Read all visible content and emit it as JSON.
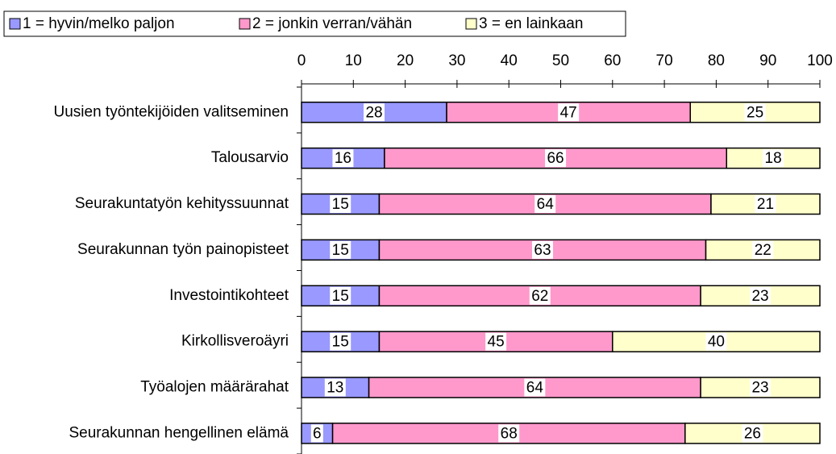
{
  "chart_data": {
    "type": "stacked_barh",
    "categories": [
      "Uusien työntekijöiden valitseminen",
      "Talousarvio",
      "Seurakuntatyön kehityssuunnat",
      "Seurakunnan työn painopisteet",
      "Investointikohteet",
      "Kirkollisveroäyri",
      "Työalojen määrärahat",
      "Seurakunnan hengellinen elämä"
    ],
    "series": [
      {
        "name": "1 = hyvin/melko paljon",
        "color": "#9999ff",
        "values": [
          28,
          16,
          15,
          15,
          15,
          15,
          13,
          6
        ]
      },
      {
        "name": "2 = jonkin verran/vähän",
        "color": "#ff99cc",
        "values": [
          47,
          66,
          64,
          63,
          62,
          45,
          64,
          68
        ]
      },
      {
        "name": "3 = en lainkaan",
        "color": "#ffffcc",
        "values": [
          25,
          18,
          21,
          22,
          23,
          40,
          23,
          26
        ]
      }
    ],
    "xlim": [
      0,
      100
    ],
    "xticks": [
      0,
      10,
      20,
      30,
      40,
      50,
      60,
      70,
      80,
      90,
      100
    ],
    "legend": "top-left"
  }
}
